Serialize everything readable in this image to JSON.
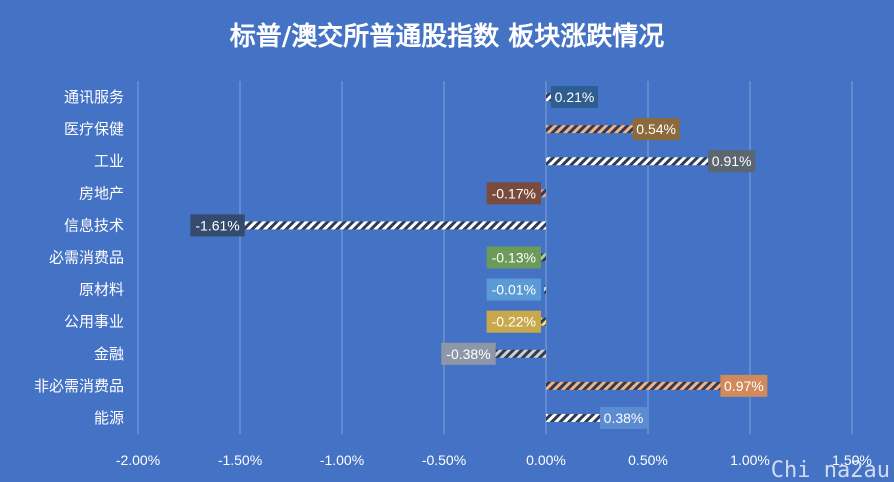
{
  "chart_data": {
    "type": "bar",
    "orientation": "horizontal",
    "title": "标普/澳交所普通股指数 板块涨跌情况",
    "categories": [
      "通讯服务",
      "医疗保健",
      "工业",
      "房地产",
      "信息技术",
      "必需消费品",
      "原材料",
      "公用事业",
      "金融",
      "非必需消费品",
      "能源"
    ],
    "values": [
      0.21,
      0.54,
      0.91,
      -0.17,
      -1.61,
      -0.13,
      -0.01,
      -0.22,
      -0.38,
      0.97,
      0.38
    ],
    "data_labels": [
      "0.21%",
      "0.54%",
      "0.91%",
      "-0.17%",
      "-1.61%",
      "-0.13%",
      "-0.01%",
      "-0.22%",
      "-0.38%",
      "0.97%",
      "0.38%"
    ],
    "label_colors": [
      "#2E5D8F",
      "#8C6A3C",
      "#5B6670",
      "#7A4A3C",
      "#344B6E",
      "#6B9A5A",
      "#5B9BD5",
      "#C9A84B",
      "#8E97A8",
      "#D08A5C",
      "#5B8BD0"
    ],
    "hatch_colors": [
      "#FFFFFF",
      "#F4B183",
      "#FFFFFF",
      "#E2A0A0",
      "#FFFFFF",
      "#A9D18E",
      "#BDD7EE",
      "#FFD966",
      "#D0D0D0",
      "#F4B183",
      "#FFFFFF"
    ],
    "x_ticks": [
      "-2.00%",
      "-1.50%",
      "-1.00%",
      "-0.50%",
      "0.00%",
      "0.50%",
      "1.00%",
      "1.50%"
    ],
    "xlim": [
      -2.0,
      1.5
    ],
    "xlabel": "",
    "ylabel": "",
    "grid": "vertical",
    "legend": "none"
  },
  "watermark": "Chi na2au"
}
